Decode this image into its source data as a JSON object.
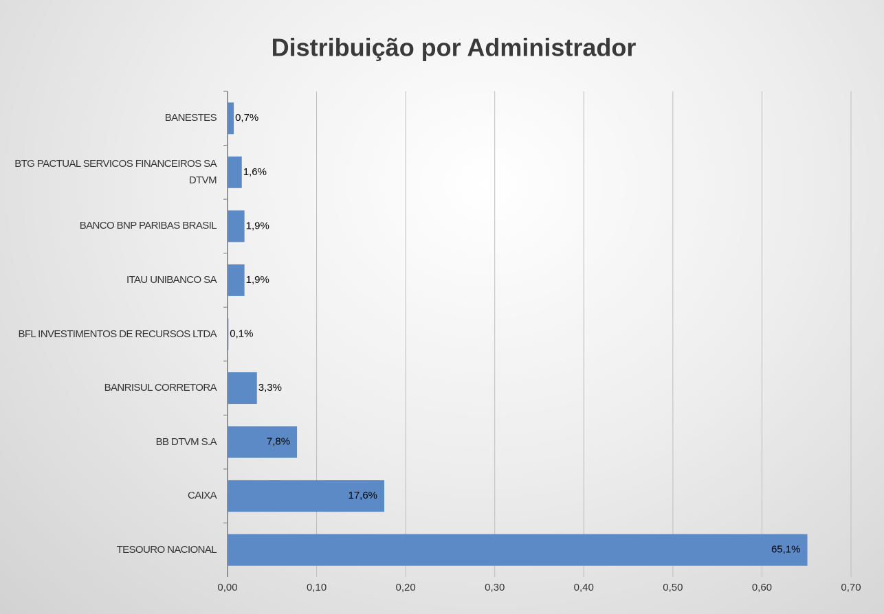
{
  "chart_data": {
    "type": "barh",
    "title": "Distribuição por Administrador",
    "categories": [
      "BANESTES",
      "BTG PACTUAL SERVICOS FINANCEIROS SA DTVM",
      "BANCO BNP PARIBAS BRASIL",
      "ITAU UNIBANCO SA",
      "BFL INVESTIMENTOS DE RECURSOS LTDA",
      "BANRISUL CORRETORA",
      "BB DTVM S.A",
      "CAIXA",
      "TESOURO NACIONAL"
    ],
    "values": [
      0.007,
      0.016,
      0.019,
      0.019,
      0.001,
      0.033,
      0.078,
      0.176,
      0.651
    ],
    "value_labels": [
      "0,7%",
      "1,6%",
      "1,9%",
      "1,9%",
      "0,1%",
      "3,3%",
      "7,8%",
      "17,6%",
      "65,1%"
    ],
    "color": "#5b8ac6",
    "xlim": [
      0,
      0.7
    ],
    "xticks": [
      {
        "value": 0,
        "label": "0,00"
      },
      {
        "value": 0.1,
        "label": "0,10"
      },
      {
        "value": 0.2,
        "label": "0,20"
      },
      {
        "value": 0.3,
        "label": "0,30"
      },
      {
        "value": 0.4,
        "label": "0,40"
      },
      {
        "value": 0.5,
        "label": "0,50"
      },
      {
        "value": 0.6,
        "label": "0,60"
      },
      {
        "value": 0.7,
        "label": "0,70"
      }
    ],
    "grid": true
  }
}
